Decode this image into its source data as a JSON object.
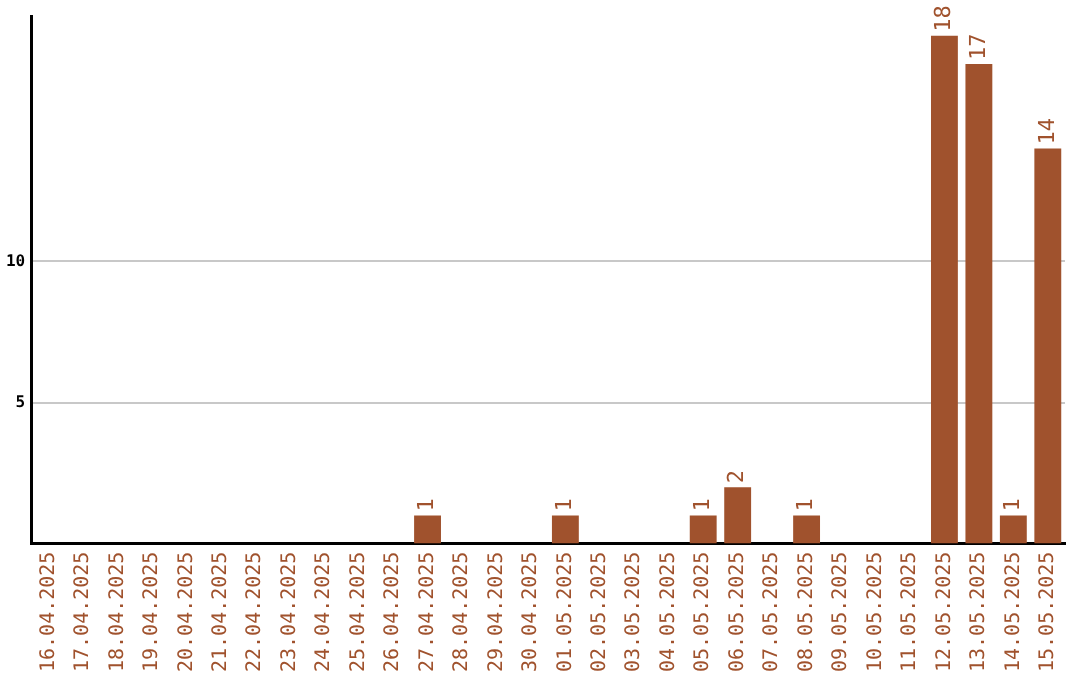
{
  "chart_data": {
    "type": "bar",
    "categories": [
      "16.04.2025",
      "17.04.2025",
      "18.04.2025",
      "19.04.2025",
      "20.04.2025",
      "21.04.2025",
      "22.04.2025",
      "23.04.2025",
      "24.04.2025",
      "25.04.2025",
      "26.04.2025",
      "27.04.2025",
      "28.04.2025",
      "29.04.2025",
      "30.04.2025",
      "01.05.2025",
      "02.05.2025",
      "03.05.2025",
      "04.05.2025",
      "05.05.2025",
      "06.05.2025",
      "07.05.2025",
      "08.05.2025",
      "09.05.2025",
      "10.05.2025",
      "11.05.2025",
      "12.05.2025",
      "13.05.2025",
      "14.05.2025",
      "15.05.2025"
    ],
    "values": [
      0,
      0,
      0,
      0,
      0,
      0,
      0,
      0,
      0,
      0,
      0,
      1,
      0,
      0,
      0,
      1,
      0,
      0,
      0,
      1,
      2,
      0,
      1,
      0,
      0,
      0,
      18,
      17,
      1,
      14
    ],
    "value_labels": [
      null,
      null,
      null,
      null,
      null,
      null,
      null,
      null,
      null,
      null,
      null,
      "1",
      null,
      null,
      null,
      "1",
      null,
      null,
      null,
      "1",
      "2",
      null,
      "1",
      null,
      null,
      null,
      "18",
      "17",
      "1",
      "14"
    ],
    "color": "#a0522d",
    "ylim": [
      0,
      18.7
    ],
    "yticks": [
      5,
      10
    ],
    "grid": "y",
    "legend": false
  }
}
